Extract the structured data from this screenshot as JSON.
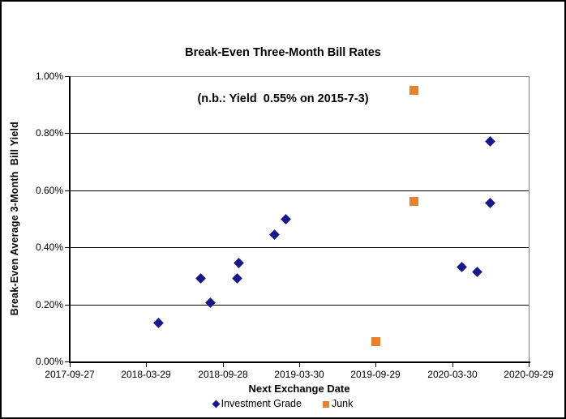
{
  "frame": {
    "background": "#FFFFFF",
    "border_color": "#000000"
  },
  "chart_data": {
    "type": "scatter",
    "title": "Break-Even Three-Month Bill Rates",
    "subtitle": "(n.b.: Yield  0.55% on 2015-7-3)",
    "xlabel": "Next Exchange Date",
    "ylabel": "Break-Even Average 3-Month  Bill Yield",
    "y_units": "percent",
    "xlim": [
      "2017-09-27",
      "2020-09-29"
    ],
    "ylim": [
      0.0,
      1.0
    ],
    "x_tick_labels": [
      "2017-09-27",
      "2018-03-29",
      "2018-09-28",
      "2019-03-30",
      "2019-09-29",
      "2020-03-30",
      "2020-09-29"
    ],
    "y_tick_values": [
      1.0,
      0.8,
      0.6,
      0.4,
      0.2,
      0.0
    ],
    "y_tick_labels": [
      "1.00%",
      "0.80%",
      "0.60%",
      "0.40%",
      "0.20%",
      "0.00%"
    ],
    "grid": "horizontal-black-gridlines",
    "plot_border_color": "#808080",
    "axis_color": "#000000",
    "legend_position": "bottom-center",
    "series": [
      {
        "name": "Investment Grade",
        "marker": "diamond",
        "color": "#18188C",
        "points": [
          [
            "2018-04-28",
            0.135
          ],
          [
            "2018-08-06",
            0.29
          ],
          [
            "2018-08-29",
            0.205
          ],
          [
            "2018-11-02",
            0.29
          ],
          [
            "2018-11-06",
            0.345
          ],
          [
            "2019-01-29",
            0.445
          ],
          [
            "2019-02-26",
            0.5
          ],
          [
            "2020-04-22",
            0.33
          ],
          [
            "2020-05-29",
            0.315
          ],
          [
            "2020-06-28",
            0.555
          ],
          [
            "2020-06-28",
            0.77
          ]
        ]
      },
      {
        "name": "Junk",
        "marker": "square",
        "color": "#E8812D",
        "points": [
          [
            "2019-09-29",
            0.07
          ],
          [
            "2019-12-29",
            0.56
          ],
          [
            "2019-12-29",
            0.95
          ]
        ]
      }
    ]
  }
}
